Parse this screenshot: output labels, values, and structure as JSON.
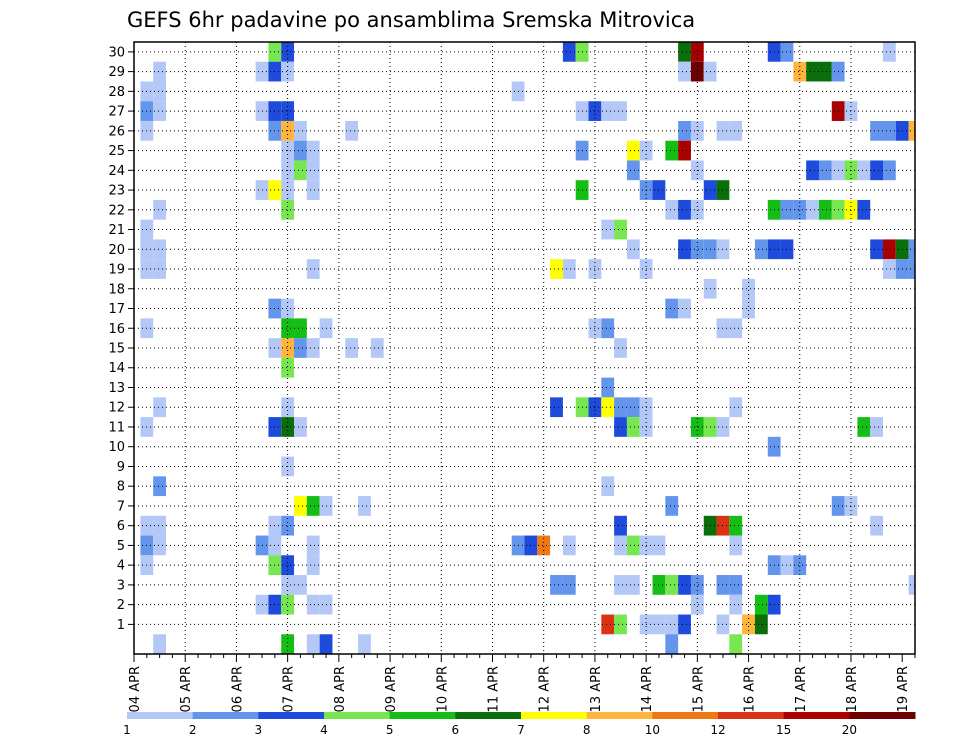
{
  "chart_data": {
    "type": "heatmap",
    "title": "GEFS 6hr padavine po ansamblima Sremska Mitrovica",
    "x_dates": [
      "04 APR",
      "05 APR",
      "06 APR",
      "07 APR",
      "08 APR",
      "09 APR",
      "10 APR",
      "11 APR",
      "12 APR",
      "13 APR",
      "14 APR",
      "15 APR",
      "16 APR",
      "17 APR",
      "18 APR",
      "19 APR"
    ],
    "x_step_hours": 6,
    "x_range_steps": [
      0,
      61
    ],
    "y_members": [
      1,
      2,
      3,
      4,
      5,
      6,
      7,
      8,
      9,
      10,
      11,
      12,
      13,
      14,
      15,
      16,
      17,
      18,
      19,
      20,
      21,
      22,
      23,
      24,
      25,
      26,
      27,
      28,
      29,
      30
    ],
    "grid": "dotted",
    "legend_placement": "bottom",
    "colorbar": {
      "labels": [
        "1",
        "2",
        "3",
        "4",
        "5",
        "6",
        "7",
        "8",
        "10",
        "12",
        "15",
        "20"
      ],
      "colors": [
        "#b4c8f8",
        "#6495ed",
        "#1e4bdc",
        "#78e650",
        "#14be14",
        "#0a6e0a",
        "#ffff00",
        "#ffb43c",
        "#f07814",
        "#dc3214",
        "#aa0000",
        "#6e0000"
      ]
    },
    "cells": [
      [
        30,
        11,
        4
      ],
      [
        30,
        12,
        3
      ],
      [
        30,
        34,
        3
      ],
      [
        30,
        35,
        4
      ],
      [
        30,
        43,
        6
      ],
      [
        30,
        44,
        11
      ],
      [
        30,
        50,
        3
      ],
      [
        30,
        51,
        2
      ],
      [
        30,
        59,
        1
      ],
      [
        29,
        2,
        1
      ],
      [
        29,
        10,
        1
      ],
      [
        29,
        11,
        3
      ],
      [
        29,
        12,
        1
      ],
      [
        29,
        43,
        1
      ],
      [
        29,
        44,
        12
      ],
      [
        29,
        45,
        1
      ],
      [
        29,
        52,
        8
      ],
      [
        29,
        53,
        6
      ],
      [
        29,
        54,
        6
      ],
      [
        29,
        55,
        2
      ],
      [
        28,
        1,
        1
      ],
      [
        28,
        2,
        1
      ],
      [
        28,
        30,
        1
      ],
      [
        27,
        1,
        2
      ],
      [
        27,
        2,
        1
      ],
      [
        27,
        10,
        1
      ],
      [
        27,
        11,
        3
      ],
      [
        27,
        12,
        3
      ],
      [
        27,
        35,
        1
      ],
      [
        27,
        36,
        3
      ],
      [
        27,
        37,
        1
      ],
      [
        27,
        38,
        1
      ],
      [
        27,
        55,
        11
      ],
      [
        27,
        56,
        1
      ],
      [
        26,
        1,
        1
      ],
      [
        26,
        11,
        2
      ],
      [
        26,
        12,
        8
      ],
      [
        26,
        13,
        1
      ],
      [
        26,
        17,
        1
      ],
      [
        26,
        43,
        2
      ],
      [
        26,
        44,
        1
      ],
      [
        26,
        46,
        1
      ],
      [
        26,
        47,
        1
      ],
      [
        26,
        58,
        2
      ],
      [
        26,
        59,
        2
      ],
      [
        26,
        60,
        3
      ],
      [
        26,
        61,
        8
      ],
      [
        25,
        12,
        1
      ],
      [
        25,
        13,
        2
      ],
      [
        25,
        14,
        1
      ],
      [
        25,
        35,
        2
      ],
      [
        25,
        39,
        7
      ],
      [
        25,
        40,
        1
      ],
      [
        25,
        42,
        5
      ],
      [
        25,
        43,
        11
      ],
      [
        24,
        12,
        1
      ],
      [
        24,
        13,
        4
      ],
      [
        24,
        14,
        1
      ],
      [
        24,
        39,
        2
      ],
      [
        24,
        44,
        1
      ],
      [
        24,
        53,
        3
      ],
      [
        24,
        54,
        2
      ],
      [
        24,
        55,
        1
      ],
      [
        24,
        56,
        4
      ],
      [
        24,
        57,
        1
      ],
      [
        24,
        58,
        3
      ],
      [
        24,
        59,
        2
      ],
      [
        23,
        10,
        1
      ],
      [
        23,
        11,
        7
      ],
      [
        23,
        12,
        1
      ],
      [
        23,
        14,
        1
      ],
      [
        23,
        35,
        5
      ],
      [
        23,
        40,
        2
      ],
      [
        23,
        41,
        3
      ],
      [
        23,
        45,
        3
      ],
      [
        23,
        46,
        6
      ],
      [
        22,
        2,
        1
      ],
      [
        22,
        12,
        4
      ],
      [
        22,
        42,
        1
      ],
      [
        22,
        43,
        3
      ],
      [
        22,
        44,
        1
      ],
      [
        22,
        50,
        5
      ],
      [
        22,
        51,
        2
      ],
      [
        22,
        52,
        2
      ],
      [
        22,
        53,
        1
      ],
      [
        22,
        54,
        5
      ],
      [
        22,
        55,
        4
      ],
      [
        22,
        56,
        7
      ],
      [
        22,
        57,
        3
      ],
      [
        21,
        1,
        1
      ],
      [
        21,
        37,
        1
      ],
      [
        21,
        38,
        4
      ],
      [
        20,
        1,
        1
      ],
      [
        20,
        2,
        1
      ],
      [
        20,
        39,
        1
      ],
      [
        20,
        43,
        3
      ],
      [
        20,
        44,
        2
      ],
      [
        20,
        45,
        2
      ],
      [
        20,
        46,
        1
      ],
      [
        20,
        49,
        2
      ],
      [
        20,
        50,
        3
      ],
      [
        20,
        51,
        3
      ],
      [
        20,
        58,
        3
      ],
      [
        20,
        59,
        11
      ],
      [
        20,
        60,
        6
      ],
      [
        20,
        61,
        2
      ],
      [
        19,
        1,
        1
      ],
      [
        19,
        2,
        1
      ],
      [
        19,
        14,
        1
      ],
      [
        19,
        33,
        7
      ],
      [
        19,
        34,
        1
      ],
      [
        19,
        36,
        1
      ],
      [
        19,
        40,
        1
      ],
      [
        19,
        59,
        1
      ],
      [
        19,
        60,
        2
      ],
      [
        19,
        61,
        2
      ],
      [
        18,
        45,
        1
      ],
      [
        18,
        48,
        1
      ],
      [
        17,
        11,
        2
      ],
      [
        17,
        12,
        1
      ],
      [
        17,
        42,
        2
      ],
      [
        17,
        43,
        1
      ],
      [
        17,
        48,
        1
      ],
      [
        16,
        1,
        1
      ],
      [
        16,
        12,
        5
      ],
      [
        16,
        13,
        5
      ],
      [
        16,
        15,
        1
      ],
      [
        16,
        36,
        1
      ],
      [
        16,
        37,
        2
      ],
      [
        16,
        46,
        1
      ],
      [
        16,
        47,
        1
      ],
      [
        15,
        11,
        1
      ],
      [
        15,
        12,
        8
      ],
      [
        15,
        13,
        2
      ],
      [
        15,
        14,
        1
      ],
      [
        15,
        17,
        1
      ],
      [
        15,
        19,
        1
      ],
      [
        15,
        38,
        1
      ],
      [
        14,
        12,
        4
      ],
      [
        13,
        37,
        2
      ],
      [
        12,
        2,
        1
      ],
      [
        12,
        12,
        1
      ],
      [
        12,
        33,
        3
      ],
      [
        12,
        35,
        4
      ],
      [
        12,
        36,
        3
      ],
      [
        12,
        37,
        7
      ],
      [
        12,
        38,
        2
      ],
      [
        12,
        39,
        2
      ],
      [
        12,
        40,
        1
      ],
      [
        12,
        47,
        1
      ],
      [
        11,
        1,
        1
      ],
      [
        11,
        11,
        3
      ],
      [
        11,
        12,
        6
      ],
      [
        11,
        13,
        1
      ],
      [
        11,
        38,
        3
      ],
      [
        11,
        39,
        4
      ],
      [
        11,
        40,
        1
      ],
      [
        11,
        44,
        5
      ],
      [
        11,
        45,
        4
      ],
      [
        11,
        46,
        1
      ],
      [
        11,
        57,
        5
      ],
      [
        11,
        58,
        1
      ],
      [
        10,
        50,
        2
      ],
      [
        9,
        12,
        1
      ],
      [
        8,
        2,
        2
      ],
      [
        8,
        37,
        1
      ],
      [
        7,
        13,
        7
      ],
      [
        7,
        14,
        5
      ],
      [
        7,
        15,
        1
      ],
      [
        7,
        18,
        1
      ],
      [
        7,
        42,
        2
      ],
      [
        7,
        55,
        2
      ],
      [
        7,
        56,
        1
      ],
      [
        6,
        1,
        1
      ],
      [
        6,
        2,
        1
      ],
      [
        6,
        11,
        1
      ],
      [
        6,
        12,
        2
      ],
      [
        6,
        38,
        3
      ],
      [
        6,
        45,
        6
      ],
      [
        6,
        46,
        10
      ],
      [
        6,
        47,
        5
      ],
      [
        6,
        58,
        1
      ],
      [
        5,
        1,
        2
      ],
      [
        5,
        2,
        1
      ],
      [
        5,
        10,
        2
      ],
      [
        5,
        11,
        1
      ],
      [
        5,
        14,
        1
      ],
      [
        5,
        30,
        2
      ],
      [
        5,
        31,
        3
      ],
      [
        5,
        32,
        9
      ],
      [
        5,
        34,
        1
      ],
      [
        5,
        38,
        1
      ],
      [
        5,
        39,
        4
      ],
      [
        5,
        40,
        1
      ],
      [
        5,
        41,
        1
      ],
      [
        5,
        47,
        1
      ],
      [
        4,
        1,
        1
      ],
      [
        4,
        11,
        4
      ],
      [
        4,
        12,
        3
      ],
      [
        4,
        14,
        1
      ],
      [
        4,
        50,
        2
      ],
      [
        4,
        51,
        1
      ],
      [
        4,
        52,
        2
      ],
      [
        3,
        12,
        1
      ],
      [
        3,
        13,
        1
      ],
      [
        3,
        33,
        2
      ],
      [
        3,
        34,
        2
      ],
      [
        3,
        38,
        1
      ],
      [
        3,
        39,
        1
      ],
      [
        3,
        41,
        5
      ],
      [
        3,
        42,
        4
      ],
      [
        3,
        43,
        3
      ],
      [
        3,
        44,
        2
      ],
      [
        3,
        46,
        2
      ],
      [
        3,
        47,
        2
      ],
      [
        3,
        61,
        1
      ],
      [
        2,
        10,
        1
      ],
      [
        2,
        11,
        3
      ],
      [
        2,
        12,
        4
      ],
      [
        2,
        14,
        1
      ],
      [
        2,
        15,
        1
      ],
      [
        2,
        44,
        1
      ],
      [
        2,
        47,
        1
      ],
      [
        2,
        49,
        5
      ],
      [
        2,
        50,
        3
      ],
      [
        1,
        37,
        10
      ],
      [
        1,
        38,
        4
      ],
      [
        1,
        40,
        1
      ],
      [
        1,
        41,
        1
      ],
      [
        1,
        42,
        1
      ],
      [
        1,
        43,
        3
      ],
      [
        1,
        46,
        1
      ],
      [
        1,
        48,
        8
      ],
      [
        1,
        49,
        6
      ],
      [
        0,
        2,
        1
      ],
      [
        0,
        12,
        5
      ],
      [
        0,
        14,
        1
      ],
      [
        0,
        15,
        3
      ],
      [
        0,
        18,
        1
      ],
      [
        0,
        42,
        2
      ],
      [
        0,
        47,
        4
      ]
    ]
  }
}
